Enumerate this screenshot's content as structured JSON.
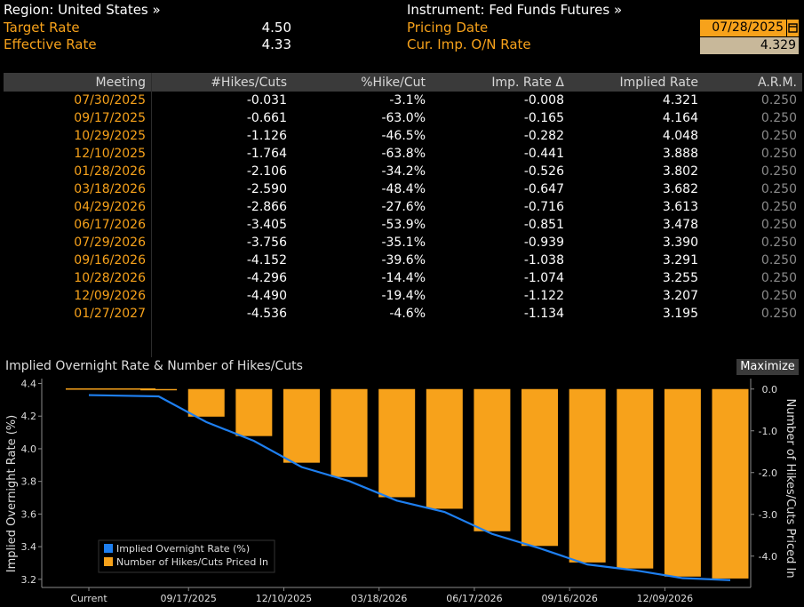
{
  "header": {
    "region_label": "Region: United States »",
    "target_rate_label": "Target Rate",
    "target_rate_value": "4.50",
    "effective_rate_label": "Effective Rate",
    "effective_rate_value": "4.33",
    "instrument_label": "Instrument: Fed Funds Futures »",
    "pricing_date_label": "Pricing Date",
    "pricing_date_value": "07/28/2025",
    "cur_imp_label": "Cur. Imp. O/N Rate",
    "cur_imp_value": "4.329"
  },
  "table": {
    "headers": [
      "Meeting",
      "#Hikes/Cuts",
      "%Hike/Cut",
      "Imp. Rate Δ",
      "Implied Rate",
      "A.R.M."
    ],
    "rows": [
      [
        "07/30/2025",
        "-0.031",
        "-3.1%",
        "-0.008",
        "4.321",
        "0.250"
      ],
      [
        "09/17/2025",
        "-0.661",
        "-63.0%",
        "-0.165",
        "4.164",
        "0.250"
      ],
      [
        "10/29/2025",
        "-1.126",
        "-46.5%",
        "-0.282",
        "4.048",
        "0.250"
      ],
      [
        "12/10/2025",
        "-1.764",
        "-63.8%",
        "-0.441",
        "3.888",
        "0.250"
      ],
      [
        "01/28/2026",
        "-2.106",
        "-34.2%",
        "-0.526",
        "3.802",
        "0.250"
      ],
      [
        "03/18/2026",
        "-2.590",
        "-48.4%",
        "-0.647",
        "3.682",
        "0.250"
      ],
      [
        "04/29/2026",
        "-2.866",
        "-27.6%",
        "-0.716",
        "3.613",
        "0.250"
      ],
      [
        "06/17/2026",
        "-3.405",
        "-53.9%",
        "-0.851",
        "3.478",
        "0.250"
      ],
      [
        "07/29/2026",
        "-3.756",
        "-35.1%",
        "-0.939",
        "3.390",
        "0.250"
      ],
      [
        "09/16/2026",
        "-4.152",
        "-39.6%",
        "-1.038",
        "3.291",
        "0.250"
      ],
      [
        "10/28/2026",
        "-4.296",
        "-14.4%",
        "-1.074",
        "3.255",
        "0.250"
      ],
      [
        "12/09/2026",
        "-4.490",
        "-19.4%",
        "-1.122",
        "3.207",
        "0.250"
      ],
      [
        "01/27/2027",
        "-4.536",
        "-4.6%",
        "-1.134",
        "3.195",
        "0.250"
      ]
    ]
  },
  "chart_panel": {
    "title": "Implied Overnight Rate & Number of Hikes/Cuts",
    "maximize_label": "Maximize"
  },
  "chart_data": {
    "type": "bar",
    "title": "Implied Overnight Rate & Number of Hikes/Cuts",
    "categories": [
      "Current",
      "07/30/2025",
      "09/17/2025",
      "10/29/2025",
      "12/10/2025",
      "01/28/2026",
      "03/18/2026",
      "04/29/2026",
      "06/17/2026",
      "07/29/2026",
      "09/16/2026",
      "10/28/2026",
      "12/09/2026",
      "01/27/2027"
    ],
    "x_tick_labels": [
      "Current",
      "09/17/2025",
      "12/10/2025",
      "03/18/2026",
      "06/17/2026",
      "09/16/2026",
      "12/09/2026"
    ],
    "series": [
      {
        "name": "Implied Overnight Rate (%)",
        "type": "line",
        "axis": "left",
        "color": "#1e7ff0",
        "values": [
          4.329,
          4.321,
          4.164,
          4.048,
          3.888,
          3.802,
          3.682,
          3.613,
          3.478,
          3.39,
          3.291,
          3.255,
          3.207,
          3.195
        ]
      },
      {
        "name": "Number of Hikes/Cuts Priced In",
        "type": "bar",
        "axis": "right",
        "color": "#f7a21b",
        "values": [
          0,
          -0.031,
          -0.661,
          -1.126,
          -1.764,
          -2.106,
          -2.59,
          -2.866,
          -3.405,
          -3.756,
          -4.152,
          -4.296,
          -4.49,
          -4.536
        ]
      }
    ],
    "ylabel": "Implied Overnight Rate (%)",
    "ylabel_right": "Number of Hikes/Cuts Priced In",
    "ylim": [
      3.15,
      4.43
    ],
    "ylim_right": [
      -4.75,
      0.25
    ],
    "yticks": [
      "3.2",
      "3.4",
      "3.6",
      "3.8",
      "4.0",
      "4.2",
      "4.4"
    ],
    "yticks_right": [
      "-4.0",
      "-3.0",
      "-2.0",
      "-1.0",
      "0.0"
    ],
    "legend_position": "bottom-left",
    "grid": false
  }
}
